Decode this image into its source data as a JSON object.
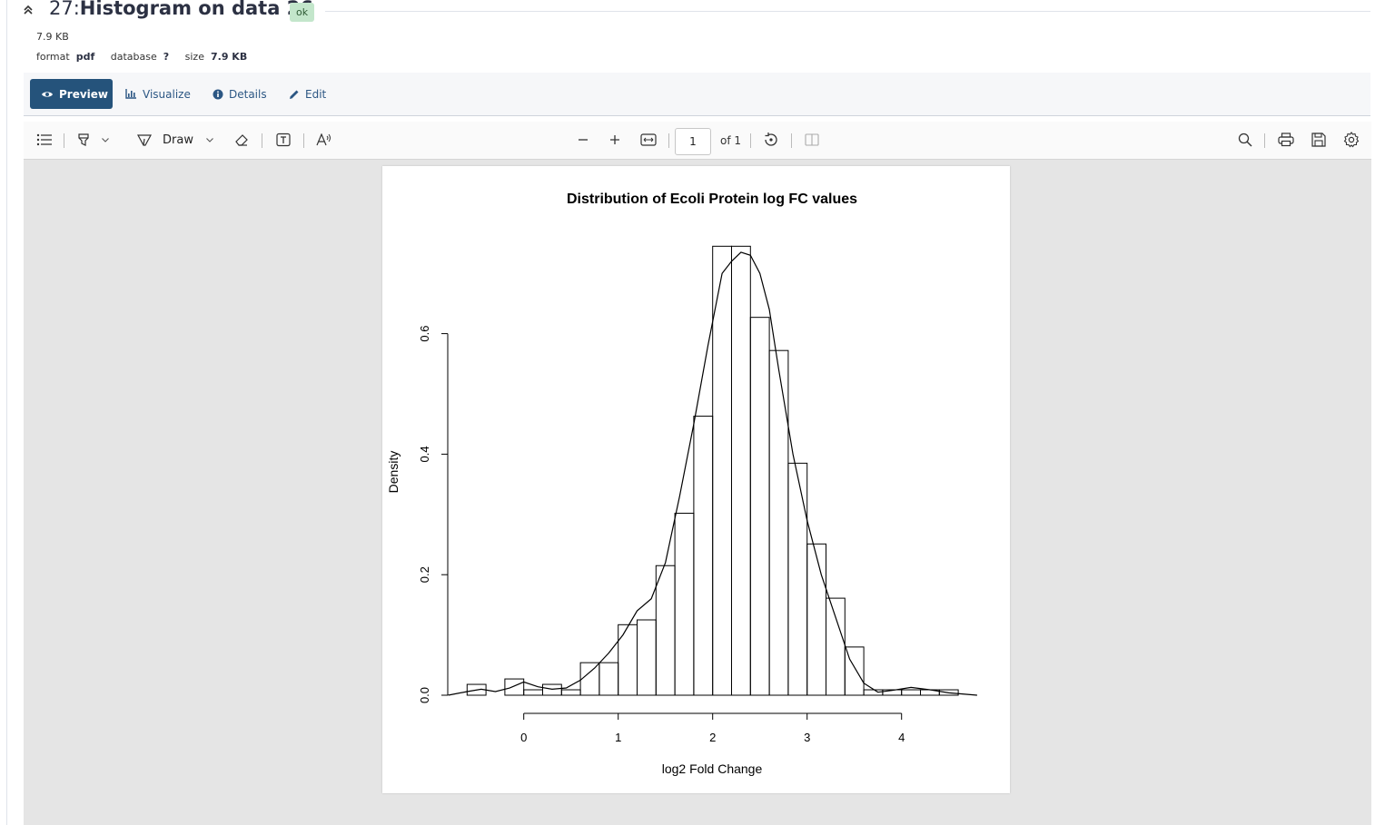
{
  "dataset": {
    "hid": "27:",
    "name": "Histogram on data 26",
    "state": "ok",
    "size_text": "7.9 KB",
    "format_label": "format",
    "format_value": "pdf",
    "database_label": "database",
    "database_value": "?",
    "size_label": "size",
    "size_value": "7.9 KB"
  },
  "tabs": [
    {
      "label": "Preview",
      "icon": "eye-icon",
      "active": true
    },
    {
      "label": "Visualize",
      "icon": "chart-icon",
      "active": false
    },
    {
      "label": "Details",
      "icon": "info-icon",
      "active": false
    },
    {
      "label": "Edit",
      "icon": "pencil-icon",
      "active": false
    }
  ],
  "viewer": {
    "draw_label": "Draw",
    "page_number": "1",
    "page_total_label": "of 1",
    "toolbar_icons": [
      "sidebar-toggle-icon",
      "highlight-icon",
      "chevron-down-icon",
      "draw-icon",
      "chevron-down-icon",
      "eraser-icon",
      "text-box-icon",
      "read-aloud-icon",
      "zoom-out-icon",
      "zoom-in-icon",
      "fit-page-icon",
      "rotate-icon",
      "page-view-icon",
      "search-icon",
      "print-icon",
      "save-icon",
      "settings-icon"
    ]
  },
  "colors": {
    "accent": "#25537b",
    "ok_badge_bg": "#c3e6cb",
    "viewer_bg": "#e5e5e5"
  },
  "chart_data": {
    "type": "bar",
    "title": "Distribution of Ecoli Protein log FC values",
    "xlabel": "log2 Fold Change",
    "ylabel": "Density",
    "x_ticks": [
      0,
      1,
      2,
      3,
      4
    ],
    "y_ticks": [
      "0.0",
      "0.2",
      "0.4",
      "0.6"
    ],
    "xlim": [
      -0.9,
      4.8
    ],
    "ylim": [
      0,
      0.75
    ],
    "bin_width": 0.2,
    "bins_left": [
      -0.6,
      -0.4,
      -0.2,
      0.0,
      0.2,
      0.4,
      0.6,
      0.8,
      1.0,
      1.2,
      1.4,
      1.6,
      1.8,
      2.0,
      2.2,
      2.4,
      2.6,
      2.8,
      3.0,
      3.2,
      3.4,
      3.6,
      3.8,
      4.0,
      4.2,
      4.4
    ],
    "values": [
      0.018,
      0.0,
      0.027,
      0.009,
      0.018,
      0.009,
      0.054,
      0.054,
      0.117,
      0.125,
      0.215,
      0.302,
      0.463,
      0.745,
      0.745,
      0.627,
      0.572,
      0.385,
      0.251,
      0.161,
      0.08,
      0.009,
      0.009,
      0.009,
      0.009,
      0.009
    ],
    "density_curve": {
      "x": [
        -0.8,
        -0.6,
        -0.45,
        -0.3,
        -0.15,
        0.0,
        0.15,
        0.3,
        0.45,
        0.6,
        0.75,
        0.9,
        1.05,
        1.2,
        1.35,
        1.5,
        1.65,
        1.8,
        1.95,
        2.1,
        2.2,
        2.3,
        2.4,
        2.5,
        2.6,
        2.7,
        2.85,
        3.0,
        3.15,
        3.3,
        3.45,
        3.6,
        3.75,
        3.9,
        4.1,
        4.3,
        4.5,
        4.8
      ],
      "y": [
        0.0,
        0.006,
        0.01,
        0.006,
        0.012,
        0.022,
        0.014,
        0.01,
        0.012,
        0.025,
        0.045,
        0.07,
        0.1,
        0.14,
        0.16,
        0.22,
        0.33,
        0.45,
        0.58,
        0.7,
        0.72,
        0.735,
        0.73,
        0.7,
        0.64,
        0.54,
        0.4,
        0.29,
        0.2,
        0.13,
        0.06,
        0.02,
        0.005,
        0.008,
        0.013,
        0.009,
        0.004,
        0.0
      ]
    },
    "grid": false,
    "legend": "none"
  }
}
